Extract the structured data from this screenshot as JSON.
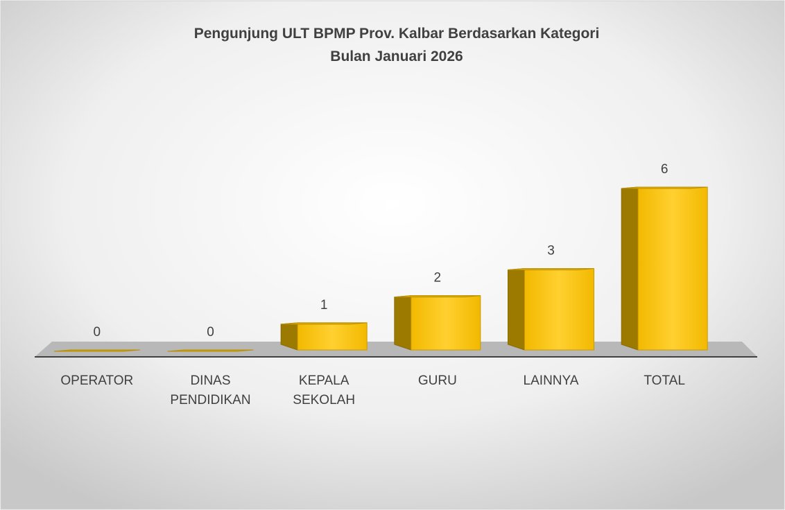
{
  "chart_data": {
    "type": "bar3d",
    "title": "Pengunjung ULT BPMP Prov. Kalbar Berdasarkan Kategori",
    "subtitle": "Bulan Januari 2026",
    "categories": [
      "OPERATOR",
      "DINAS PENDIDIKAN",
      "KEPALA SEKOLAH",
      "GURU",
      "LAINNYA",
      "TOTAL"
    ],
    "values": [
      0,
      0,
      1,
      2,
      3,
      6
    ],
    "color": "#f7c516",
    "ylim": [
      0,
      6
    ]
  }
}
